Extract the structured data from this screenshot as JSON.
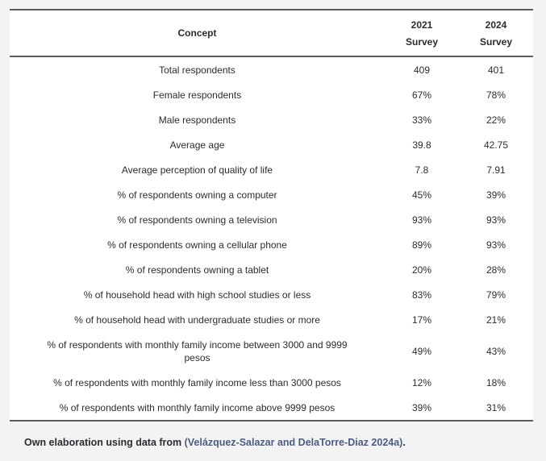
{
  "colors": {
    "page_background": "#f3f3f4",
    "table_background": "#ffffff",
    "rule_color": "#5c5c5c",
    "text_color": "#2c2c2e",
    "citation_link_color": "#4c5c80"
  },
  "table": {
    "header": {
      "concept": "Concept",
      "col2021": [
        "2021",
        "Survey"
      ],
      "col2024": [
        "2024",
        "Survey"
      ]
    },
    "rows": [
      {
        "concept": "Total respondents",
        "v2021": "409",
        "v2024": "401"
      },
      {
        "concept": "Female respondents",
        "v2021": "67%",
        "v2024": "78%"
      },
      {
        "concept": "Male respondents",
        "v2021": "33%",
        "v2024": "22%"
      },
      {
        "concept": "Average age",
        "v2021": "39.8",
        "v2024": "42.75"
      },
      {
        "concept": "Average perception of quality of life",
        "v2021": "7.8",
        "v2024": "7.91"
      },
      {
        "concept": "% of respondents owning a computer",
        "v2021": "45%",
        "v2024": "39%"
      },
      {
        "concept": "% of respondents owning a television",
        "v2021": "93%",
        "v2024": "93%"
      },
      {
        "concept": "% of respondents owning a cellular phone",
        "v2021": "89%",
        "v2024": "93%"
      },
      {
        "concept": "% of respondents owning a tablet",
        "v2021": "20%",
        "v2024": "28%"
      },
      {
        "concept": "% of household head with high school studies or less",
        "v2021": "83%",
        "v2024": "79%"
      },
      {
        "concept": "% of household head with undergraduate studies or more",
        "v2021": "17%",
        "v2024": "21%"
      },
      {
        "concept": "% of respondents with monthly family income between 3000 and 9999\npesos",
        "v2021": "49%",
        "v2024": "43%"
      },
      {
        "concept": "% of respondents with monthly family income less than 3000 pesos",
        "v2021": "12%",
        "v2024": "18%"
      },
      {
        "concept": "% of respondents with monthly family income above 9999 pesos",
        "v2021": "39%",
        "v2024": "31%"
      }
    ]
  },
  "caption": {
    "prefix": "Own elaboration using data from ",
    "citation": "(Velázquez-Salazar and DelaTorre-Diaz 2024a)",
    "suffix": "."
  }
}
